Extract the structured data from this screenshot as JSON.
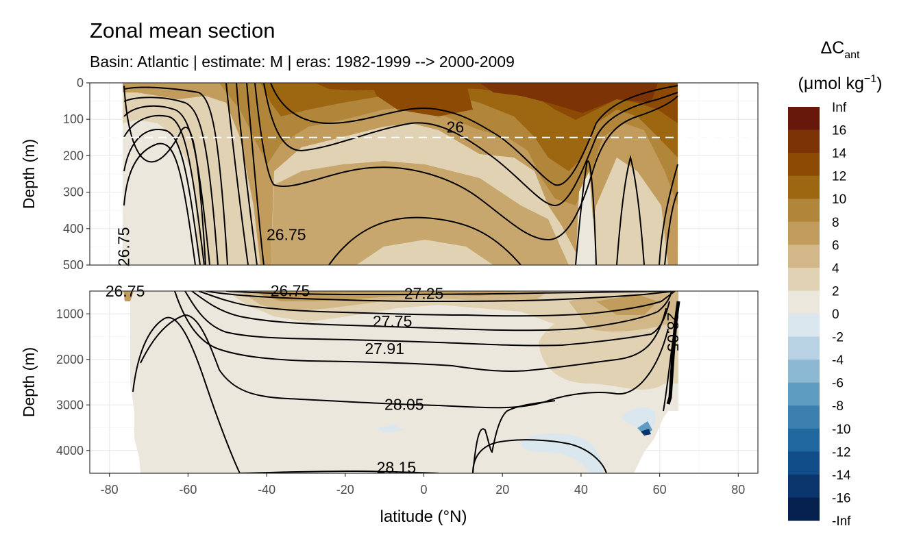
{
  "chart_data": {
    "type": "heatmap",
    "title": "Zonal mean section",
    "subtitle": "Basin: Atlantic | estimate: M  | eras: 1982-1999 --> 2000-2009",
    "xlabel": "latitude (°N)",
    "x_ticks": [
      "-80",
      "-60",
      "-40",
      "-20",
      "0",
      "20",
      "40",
      "60",
      "80"
    ],
    "xlim": [
      -85,
      85
    ],
    "grid": true,
    "legend_placement": "right",
    "legend": {
      "title_main": "ΔC",
      "title_sub": "ant",
      "title_units": "(μmol kg",
      "title_units_sup": "−1",
      "title_units_end": ")",
      "labels": [
        "Inf",
        "16",
        "14",
        "12",
        "10",
        "8",
        "6",
        "4",
        "2",
        "0",
        "-2",
        "-4",
        "-6",
        "-8",
        "-10",
        "-12",
        "-14",
        "-16",
        "-Inf"
      ],
      "colors": [
        "#67180a",
        "#7c3305",
        "#8d4a04",
        "#9c6710",
        "#b2863a",
        "#c19c5c",
        "#d2b888",
        "#e1d2b4",
        "#ece7dc",
        "#dbe7ee",
        "#b8d2e3",
        "#8db8d4",
        "#5e9cc1",
        "#3c80b0",
        "#2168a0",
        "#114e89",
        "#0b356d",
        "#07214f",
        "#041543"
      ]
    },
    "panels": [
      {
        "ylabel": "Depth (m)",
        "y_ticks": [
          "0",
          "100",
          "200",
          "300",
          "400",
          "500"
        ],
        "ylim": [
          0,
          500
        ],
        "reference_line_depth": 150,
        "contour_labels": [
          {
            "text": "26",
            "lat": 8,
            "depth": 125
          },
          {
            "text": "26.75",
            "lat": -35,
            "depth": 420
          },
          {
            "text": "26.75",
            "lat": -76,
            "depth": 450,
            "vertical": true
          }
        ]
      },
      {
        "ylabel": "Depth (m)",
        "y_ticks": [
          "1000",
          "2000",
          "3000",
          "4000"
        ],
        "ylim": [
          500,
          4500
        ],
        "contour_labels": [
          {
            "text": "26.75",
            "lat": -76,
            "depth": 530
          },
          {
            "text": "26.75",
            "lat": -34,
            "depth": 520
          },
          {
            "text": "27.25",
            "lat": 0,
            "depth": 580
          },
          {
            "text": "27.75",
            "lat": -8,
            "depth": 1190
          },
          {
            "text": "27.91",
            "lat": -10,
            "depth": 1790
          },
          {
            "text": "28.05",
            "lat": -5,
            "depth": 3020
          },
          {
            "text": "28.15",
            "lat": -7,
            "depth": 4400
          },
          {
            "text": "28.05",
            "lat": 63,
            "depth": 1400,
            "vertical": true
          }
        ]
      }
    ]
  }
}
